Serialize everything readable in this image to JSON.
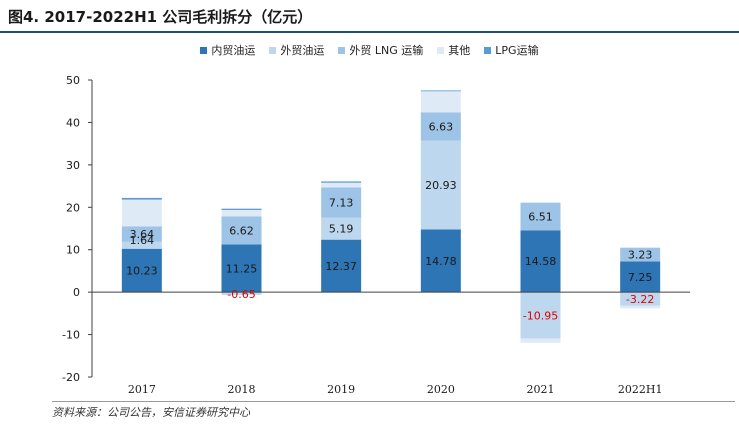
{
  "title": "图4. 2017-2022H1 公司毛利拆分（亿元）",
  "source": "资料来源：公司公告，安信证券研究中心",
  "chart_data": {
    "type": "bar",
    "stacked": true,
    "categories": [
      "2017",
      "2018",
      "2019",
      "2020",
      "2021",
      "2022H1"
    ],
    "ylim": [
      -20,
      50
    ],
    "yticks": [
      -20,
      -10,
      0,
      10,
      20,
      30,
      40,
      50
    ],
    "legend_position": "top",
    "series": [
      {
        "name": "内贸油运",
        "color": "#2e75b6",
        "values": [
          10.23,
          11.25,
          12.37,
          14.78,
          14.58,
          7.25
        ],
        "labels": [
          "10.23",
          "11.25",
          "12.37",
          "14.78",
          "14.58",
          "7.25"
        ],
        "label_color": "#1a1a1a"
      },
      {
        "name": "外贸油运",
        "color": "#bdd7ee",
        "values": [
          1.64,
          -0.65,
          5.19,
          20.93,
          -10.95,
          -3.22
        ],
        "labels": [
          "1.64",
          "-0.65",
          "5.19",
          "20.93",
          "-10.95",
          "-3.22"
        ],
        "label_color": "#1a1a1a",
        "negative_label_color": "#e00000"
      },
      {
        "name": "外贸 LNG 运输",
        "color": "#9dc3e6",
        "values": [
          3.64,
          6.62,
          7.13,
          6.63,
          6.51,
          3.23
        ],
        "labels": [
          "3.64",
          "6.62",
          "7.13",
          "6.63",
          "6.51",
          "3.23"
        ],
        "label_color": "#1a1a1a"
      },
      {
        "name": "其他",
        "color": "#deebf7",
        "values": [
          6.3,
          1.5,
          1.1,
          5.0,
          0.0,
          0.0
        ]
      },
      {
        "name": "LPG运输",
        "color": "#5b9bd5",
        "values": [
          0.4,
          0.3,
          0.3,
          0.2,
          0.0,
          0.0
        ]
      }
    ],
    "extra_negative": {
      "color": "#deebf7",
      "values": [
        0,
        0,
        0,
        0,
        -1.0,
        -0.6
      ]
    }
  }
}
